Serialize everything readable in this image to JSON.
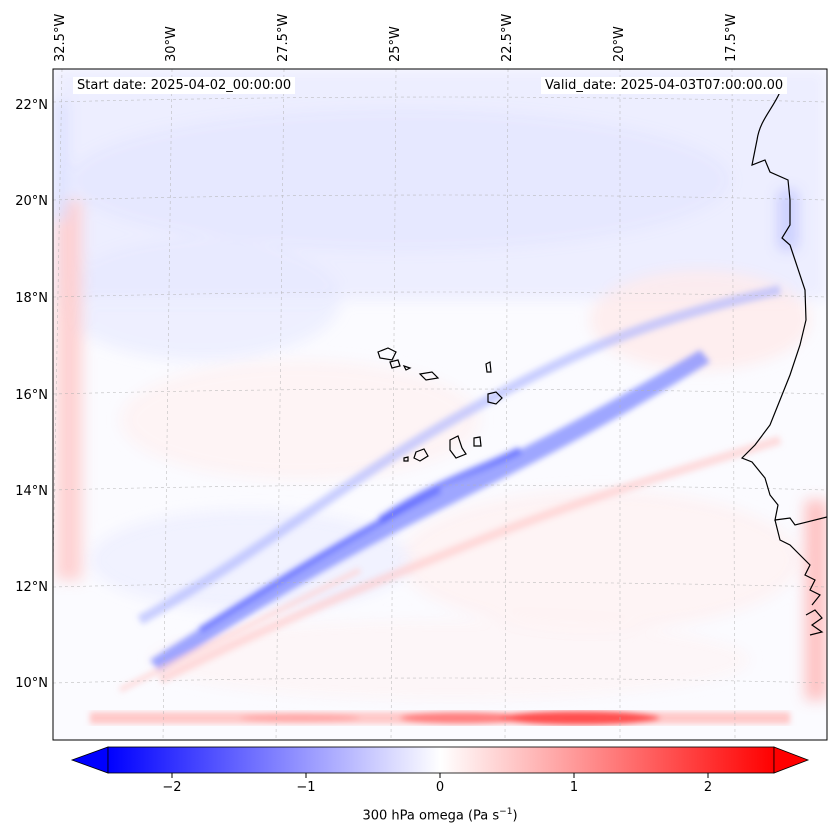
{
  "map": {
    "start_date": "Start date: 2025-04-02_00:00:00",
    "valid_date": "Valid_date: 2025-04-03T07:00:00.00",
    "lon_labels": [
      "32.5°W",
      "30°W",
      "27.5°W",
      "25°W",
      "22.5°W",
      "20°W",
      "17.5°W"
    ],
    "lat_labels": [
      "22°N",
      "20°N",
      "18°N",
      "16°N",
      "14°N",
      "12°N",
      "10°N"
    ],
    "extent": {
      "lon_min": -33.0,
      "lon_max": -15.5,
      "lat_min": 8.9,
      "lat_max": 22.7
    },
    "gridlines": true
  },
  "colorbar": {
    "label_main": "300 hPa omega (Pa s",
    "label_exp": "−1",
    "label_end": ")",
    "ticks": [
      "−2",
      "−1",
      "0",
      "1",
      "2"
    ],
    "tick_values": [
      -2,
      -1,
      0,
      1,
      2
    ],
    "range": [
      -2.6,
      2.6
    ],
    "cmap": "bwr",
    "extend": "both"
  },
  "colors": {
    "negative": "#0000ff",
    "zero": "#ffffff",
    "positive": "#ff0000",
    "coast": "#000000"
  }
}
